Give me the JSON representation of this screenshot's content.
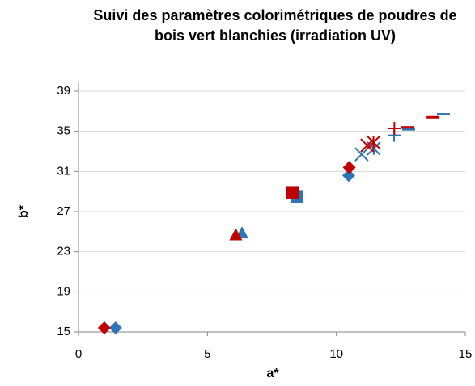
{
  "chart_data": {
    "type": "scatter",
    "title": "Suivi des paramètres colorimétriques de poudres de bois vert blanchies (irradiation UV)",
    "xlabel": "a*",
    "ylabel": "b*",
    "xlim": [
      0,
      15
    ],
    "xticks": [
      0,
      5,
      10,
      15
    ],
    "ylim": [
      15,
      39
    ],
    "yticks": [
      15,
      19,
      23,
      27,
      31,
      35,
      39
    ],
    "grid": true,
    "markers": [
      "diamond",
      "triangle",
      "square",
      "diamond",
      "x",
      "star",
      "plus",
      "dash",
      "dash"
    ],
    "series": [
      {
        "color": "#2e75b6",
        "x": [
          1.44,
          6.34,
          8.47,
          10.48,
          10.98,
          11.45,
          12.24,
          12.8,
          14.15
        ],
        "values": [
          15.4,
          24.9,
          28.5,
          30.6,
          32.7,
          33.3,
          34.6,
          35.2,
          36.7
        ]
      },
      {
        "color": "#c00000",
        "x": [
          1.0,
          6.1,
          8.31,
          10.5,
          11.2,
          11.44,
          12.25,
          12.75,
          13.75
        ],
        "values": [
          15.4,
          24.7,
          28.9,
          31.4,
          33.6,
          33.9,
          35.3,
          35.4,
          36.4
        ]
      }
    ]
  }
}
